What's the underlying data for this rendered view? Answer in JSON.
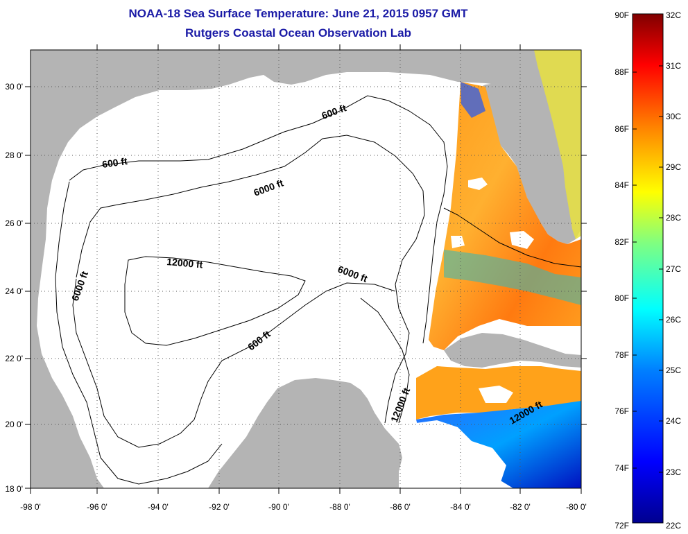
{
  "title": "NOAA-18 Sea Surface Temperature:  June 21, 2015 0957 GMT",
  "subtitle": "Rutgers Coastal Ocean Observation Lab",
  "lat_labels": [
    "30 0'",
    "28 0'",
    "26 0'",
    "24 0'",
    "22 0'",
    "20 0'",
    "18 0'"
  ],
  "lon_labels": [
    "-98 0'",
    "-96 0'",
    "-94 0'",
    "-92 0'",
    "-90 0'",
    "-88 0'",
    "-86 0'",
    "-84 0'",
    "-82 0'",
    "-80 0'"
  ],
  "contour_labels": {
    "c1": "600 ft",
    "c2": "600 ft",
    "c3": "6000 ft",
    "c4": "12000 ft",
    "c5": "6000 ft",
    "c6": "6000 ft",
    "c7": "600 ft",
    "c8": "12000 ft",
    "c9": "12000 ft"
  },
  "colorbar": {
    "f_labels": [
      "90F",
      "88F",
      "86F",
      "84F",
      "82F",
      "80F",
      "78F",
      "76F",
      "74F",
      "72F"
    ],
    "c_labels": [
      "32C",
      "31C",
      "30C",
      "29C",
      "28C",
      "27C",
      "26C",
      "25C",
      "24C",
      "23C",
      "22C"
    ]
  },
  "colors": {
    "land": "#b4b4b4",
    "title": "#1a1aa6",
    "water": "#ffffff"
  }
}
